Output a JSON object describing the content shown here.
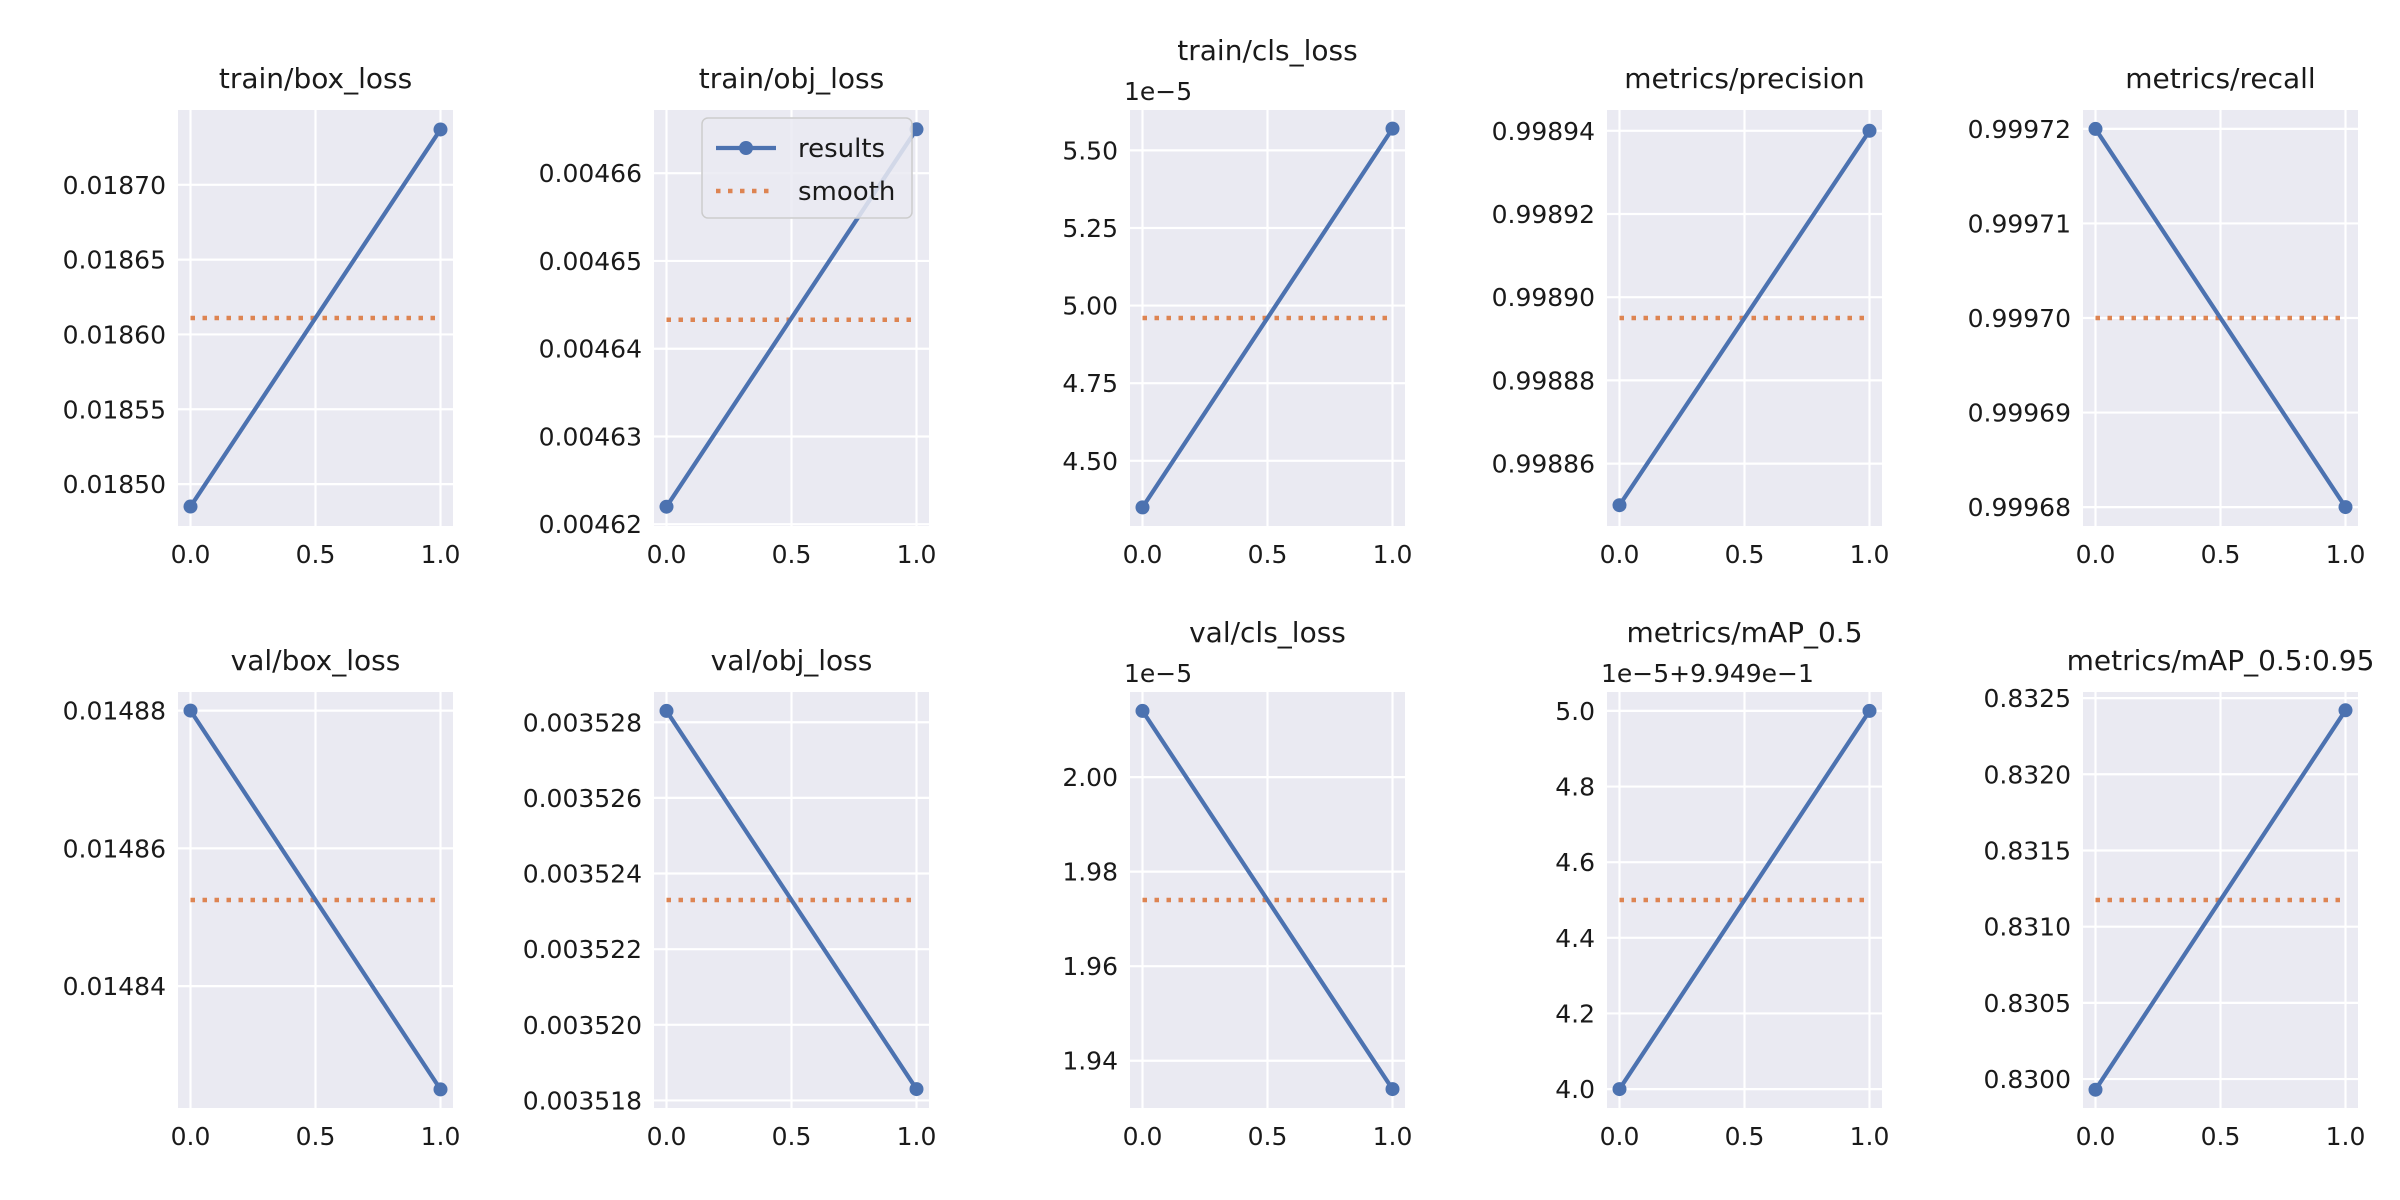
{
  "colors": {
    "results": "#4c72b0",
    "smooth": "#dd8452",
    "panel_bg": "#eaeaf2",
    "grid": "#ffffff"
  },
  "legend": {
    "placement": "upper-right of train/obj_loss panel",
    "entries": [
      "results",
      "smooth"
    ]
  },
  "chart_data": [
    {
      "type": "line",
      "title": "train/box_loss",
      "x": [
        0.0,
        1.0
      ],
      "series": [
        {
          "name": "results",
          "values": [
            0.018485,
            0.018737
          ],
          "marker": "circle"
        },
        {
          "name": "smooth",
          "values": [
            0.018611,
            0.018611
          ],
          "style": "dotted"
        }
      ],
      "xticks": [
        "0.0",
        "0.5",
        "1.0"
      ],
      "xtick_values": [
        0.0,
        0.5,
        1.0
      ],
      "yticks": [
        "0.01850",
        "0.01855",
        "0.01860",
        "0.01865",
        "0.01870"
      ],
      "ytick_values": [
        0.0185,
        0.01855,
        0.0186,
        0.01865,
        0.0187
      ],
      "xlim": [
        -0.05,
        1.05
      ],
      "ylim": [
        0.018472,
        0.01875
      ],
      "grid": true
    },
    {
      "type": "line",
      "title": "train/obj_loss",
      "x": [
        0.0,
        1.0
      ],
      "series": [
        {
          "name": "results",
          "values": [
            0.004622,
            0.004665
          ],
          "marker": "circle"
        },
        {
          "name": "smooth",
          "values": [
            0.0046433,
            0.0046433
          ],
          "style": "dotted"
        }
      ],
      "xticks": [
        "0.0",
        "0.5",
        "1.0"
      ],
      "xtick_values": [
        0.0,
        0.5,
        1.0
      ],
      "yticks": [
        "0.00462",
        "0.00463",
        "0.00464",
        "0.00465",
        "0.00466"
      ],
      "ytick_values": [
        0.00462,
        0.00463,
        0.00464,
        0.00465,
        0.00466
      ],
      "xlim": [
        -0.05,
        1.05
      ],
      "ylim": [
        0.0046198,
        0.0046672
      ],
      "grid": true,
      "legend": true
    },
    {
      "type": "line",
      "title": "train/cls_loss",
      "y_offset_text": "1e−5",
      "x": [
        0.0,
        1.0
      ],
      "series": [
        {
          "name": "results",
          "values": [
            4.35,
            5.57
          ],
          "marker": "circle"
        },
        {
          "name": "smooth",
          "values": [
            4.96,
            4.96
          ],
          "style": "dotted"
        }
      ],
      "xticks": [
        "0.0",
        "0.5",
        "1.0"
      ],
      "xtick_values": [
        0.0,
        0.5,
        1.0
      ],
      "yticks": [
        "4.50",
        "4.75",
        "5.00",
        "5.25",
        "5.50"
      ],
      "ytick_values": [
        4.5,
        4.75,
        5.0,
        5.25,
        5.5
      ],
      "xlim": [
        -0.05,
        1.05
      ],
      "ylim": [
        4.29,
        5.63
      ],
      "grid": true
    },
    {
      "type": "line",
      "title": "metrics/precision",
      "x": [
        0.0,
        1.0
      ],
      "series": [
        {
          "name": "results",
          "values": [
            0.99885,
            0.99894
          ],
          "marker": "circle"
        },
        {
          "name": "smooth",
          "values": [
            0.998895,
            0.998895
          ],
          "style": "dotted"
        }
      ],
      "xticks": [
        "0.0",
        "0.5",
        "1.0"
      ],
      "xtick_values": [
        0.0,
        0.5,
        1.0
      ],
      "yticks": [
        "0.99886",
        "0.99888",
        "0.99890",
        "0.99892",
        "0.99894"
      ],
      "ytick_values": [
        0.99886,
        0.99888,
        0.9989,
        0.99892,
        0.99894
      ],
      "xlim": [
        -0.05,
        1.05
      ],
      "ylim": [
        0.998845,
        0.998945
      ],
      "grid": true
    },
    {
      "type": "line",
      "title": "metrics/recall",
      "x": [
        0.0,
        1.0
      ],
      "series": [
        {
          "name": "results",
          "values": [
            0.99972,
            0.99968
          ],
          "marker": "circle"
        },
        {
          "name": "smooth",
          "values": [
            0.9997,
            0.9997
          ],
          "style": "dotted"
        }
      ],
      "xticks": [
        "0.0",
        "0.5",
        "1.0"
      ],
      "xtick_values": [
        0.0,
        0.5,
        1.0
      ],
      "yticks": [
        "0.99968",
        "0.99969",
        "0.99970",
        "0.99971",
        "0.99972"
      ],
      "ytick_values": [
        0.99968,
        0.99969,
        0.9997,
        0.99971,
        0.99972
      ],
      "xlim": [
        -0.05,
        1.05
      ],
      "ylim": [
        0.999678,
        0.999722
      ],
      "grid": true
    },
    {
      "type": "line",
      "title": "val/box_loss",
      "x": [
        0.0,
        1.0
      ],
      "series": [
        {
          "name": "results",
          "values": [
            0.01488,
            0.014825
          ],
          "marker": "circle"
        },
        {
          "name": "smooth",
          "values": [
            0.0148525,
            0.0148525
          ],
          "style": "dotted"
        }
      ],
      "xticks": [
        "0.0",
        "0.5",
        "1.0"
      ],
      "xtick_values": [
        0.0,
        0.5,
        1.0
      ],
      "yticks": [
        "0.01484",
        "0.01486",
        "0.01488"
      ],
      "ytick_values": [
        0.01484,
        0.01486,
        0.01488
      ],
      "xlim": [
        -0.05,
        1.05
      ],
      "ylim": [
        0.0148223,
        0.0148827
      ],
      "grid": true
    },
    {
      "type": "line",
      "title": "val/obj_loss",
      "x": [
        0.0,
        1.0
      ],
      "series": [
        {
          "name": "results",
          "values": [
            0.0035283,
            0.0035183
          ],
          "marker": "circle"
        },
        {
          "name": "smooth",
          "values": [
            0.0035233,
            0.0035233
          ],
          "style": "dotted"
        }
      ],
      "xticks": [
        "0.0",
        "0.5",
        "1.0"
      ],
      "xtick_values": [
        0.0,
        0.5,
        1.0
      ],
      "yticks": [
        "0.003518",
        "0.003520",
        "0.003522",
        "0.003524",
        "0.003526",
        "0.003528"
      ],
      "ytick_values": [
        0.003518,
        0.00352,
        0.003522,
        0.003524,
        0.003526,
        0.003528
      ],
      "xlim": [
        -0.05,
        1.05
      ],
      "ylim": [
        0.0035178,
        0.0035288
      ],
      "grid": true
    },
    {
      "type": "line",
      "title": "val/cls_loss",
      "y_offset_text": "1e−5",
      "x": [
        0.0,
        1.0
      ],
      "series": [
        {
          "name": "results",
          "values": [
            2.014,
            1.934
          ],
          "marker": "circle"
        },
        {
          "name": "smooth",
          "values": [
            1.974,
            1.974
          ],
          "style": "dotted"
        }
      ],
      "xticks": [
        "0.0",
        "0.5",
        "1.0"
      ],
      "xtick_values": [
        0.0,
        0.5,
        1.0
      ],
      "yticks": [
        "1.94",
        "1.96",
        "1.98",
        "2.00"
      ],
      "ytick_values": [
        1.94,
        1.96,
        1.98,
        2.0
      ],
      "xlim": [
        -0.05,
        1.05
      ],
      "ylim": [
        1.93,
        2.018
      ],
      "grid": true
    },
    {
      "type": "line",
      "title": "metrics/mAP_0.5",
      "y_offset_text": "1e−5+9.949e−1",
      "x": [
        0.0,
        1.0
      ],
      "series": [
        {
          "name": "results",
          "values": [
            4.0,
            5.0
          ],
          "marker": "circle"
        },
        {
          "name": "smooth",
          "values": [
            4.5,
            4.5
          ],
          "style": "dotted"
        }
      ],
      "xticks": [
        "0.0",
        "0.5",
        "1.0"
      ],
      "xtick_values": [
        0.0,
        0.5,
        1.0
      ],
      "yticks": [
        "4.0",
        "4.2",
        "4.4",
        "4.6",
        "4.8",
        "5.0"
      ],
      "ytick_values": [
        4.0,
        4.2,
        4.4,
        4.6,
        4.8,
        5.0
      ],
      "xlim": [
        -0.05,
        1.05
      ],
      "ylim": [
        3.95,
        5.05
      ],
      "grid": true
    },
    {
      "type": "line",
      "title": "metrics/mAP_0.5:0.95",
      "x": [
        0.0,
        1.0
      ],
      "series": [
        {
          "name": "results",
          "values": [
            0.82993,
            0.83242
          ],
          "marker": "circle"
        },
        {
          "name": "smooth",
          "values": [
            0.831175,
            0.831175
          ],
          "style": "dotted"
        }
      ],
      "xticks": [
        "0.0",
        "0.5",
        "1.0"
      ],
      "xtick_values": [
        0.0,
        0.5,
        1.0
      ],
      "yticks": [
        "0.8300",
        "0.8305",
        "0.8310",
        "0.8315",
        "0.8320",
        "0.8325"
      ],
      "ytick_values": [
        0.83,
        0.8305,
        0.831,
        0.8315,
        0.832,
        0.8325
      ],
      "xlim": [
        -0.05,
        1.05
      ],
      "ylim": [
        0.82981,
        0.83254
      ],
      "grid": true
    }
  ]
}
